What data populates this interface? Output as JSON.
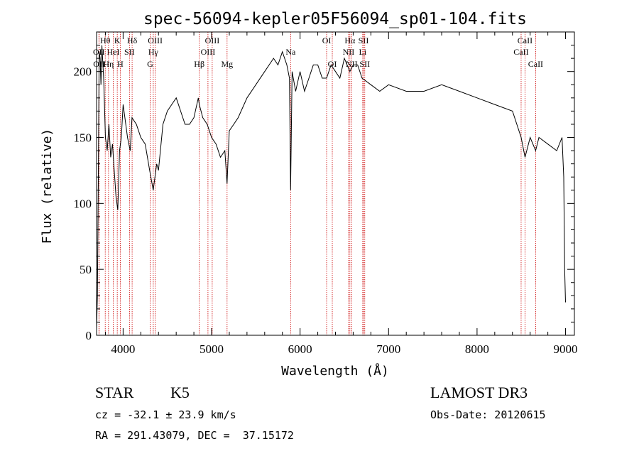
{
  "chart_data": {
    "type": "line",
    "title": "spec-56094-kepler05F56094_sp01-104.fits",
    "xlabel": "Wavelength (Å)",
    "ylabel": "Flux (relative)",
    "xlim": [
      3700,
      9100
    ],
    "ylim": [
      0,
      230
    ],
    "x_ticks": [
      4000,
      5000,
      6000,
      7000,
      8000,
      9000
    ],
    "y_ticks": [
      0,
      50,
      100,
      150,
      200
    ],
    "series": [
      {
        "name": "spectrum",
        "x": [
          3700,
          3710,
          3720,
          3730,
          3740,
          3750,
          3760,
          3780,
          3800,
          3820,
          3840,
          3860,
          3880,
          3900,
          3920,
          3940,
          3960,
          3980,
          4000,
          4020,
          4050,
          4080,
          4100,
          4150,
          4200,
          4250,
          4300,
          4340,
          4380,
          4400,
          4450,
          4500,
          4550,
          4600,
          4650,
          4700,
          4750,
          4800,
          4850,
          4861,
          4900,
          4950,
          5000,
          5050,
          5100,
          5150,
          5175,
          5200,
          5250,
          5300,
          5400,
          5500,
          5600,
          5700,
          5750,
          5800,
          5850,
          5880,
          5893,
          5910,
          5950,
          6000,
          6050,
          6100,
          6150,
          6200,
          6250,
          6300,
          6350,
          6400,
          6450,
          6500,
          6563,
          6600,
          6650,
          6700,
          6800,
          6900,
          7000,
          7200,
          7400,
          7600,
          7800,
          8000,
          8200,
          8400,
          8498,
          8542,
          8600,
          8662,
          8700,
          8800,
          8900,
          8960,
          8980,
          8990,
          9000
        ],
        "y": [
          5,
          30,
          120,
          215,
          210,
          190,
          220,
          195,
          150,
          140,
          160,
          135,
          145,
          125,
          105,
          95,
          140,
          150,
          175,
          165,
          150,
          140,
          165,
          160,
          150,
          145,
          125,
          110,
          130,
          125,
          160,
          170,
          175,
          180,
          170,
          160,
          160,
          165,
          180,
          175,
          165,
          160,
          150,
          145,
          135,
          140,
          115,
          155,
          160,
          165,
          180,
          190,
          200,
          210,
          205,
          215,
          205,
          195,
          110,
          200,
          185,
          200,
          185,
          195,
          205,
          205,
          195,
          195,
          205,
          200,
          195,
          210,
          200,
          205,
          205,
          195,
          190,
          185,
          190,
          185,
          185,
          190,
          185,
          180,
          175,
          170,
          150,
          135,
          150,
          140,
          150,
          145,
          140,
          150,
          120,
          50,
          25
        ]
      }
    ],
    "lines": [
      {
        "label": "Hθ",
        "wl": 3798,
        "row": 1
      },
      {
        "label": "OII",
        "wl": 3727,
        "row": 2
      },
      {
        "label": "OII",
        "wl": 3729,
        "row": 3
      },
      {
        "label": "K",
        "wl": 3934,
        "row": 1
      },
      {
        "label": "HeI",
        "wl": 3889,
        "row": 2
      },
      {
        "label": "Hη",
        "wl": 3835,
        "row": 3
      },
      {
        "label": "H",
        "wl": 3968,
        "row": 3
      },
      {
        "label": "SII",
        "wl": 4072,
        "row": 2
      },
      {
        "label": "Hδ",
        "wl": 4102,
        "row": 1
      },
      {
        "label": "OIII",
        "wl": 4363,
        "row": 1
      },
      {
        "label": "Hγ",
        "wl": 4341,
        "row": 2
      },
      {
        "label": "G",
        "wl": 4305,
        "row": 3
      },
      {
        "label": "Hβ",
        "wl": 4861,
        "row": 3
      },
      {
        "label": "OIII",
        "wl": 5007,
        "row": 1
      },
      {
        "label": "OIII",
        "wl": 4959,
        "row": 2
      },
      {
        "label": "Mg",
        "wl": 5175,
        "row": 3
      },
      {
        "label": "Na",
        "wl": 5893,
        "row": 2
      },
      {
        "label": "OI",
        "wl": 6300,
        "row": 1
      },
      {
        "label": "OI",
        "wl": 6364,
        "row": 3
      },
      {
        "label": "Hα",
        "wl": 6563,
        "row": 1
      },
      {
        "label": "NII",
        "wl": 6548,
        "row": 2
      },
      {
        "label": "NII",
        "wl": 6583,
        "row": 3
      },
      {
        "label": "SII",
        "wl": 6717,
        "row": 1
      },
      {
        "label": "Li",
        "wl": 6708,
        "row": 2
      },
      {
        "label": "SII",
        "wl": 6731,
        "row": 3
      },
      {
        "label": "CaII",
        "wl": 8542,
        "row": 1
      },
      {
        "label": "CaII",
        "wl": 8498,
        "row": 2
      },
      {
        "label": "CaII",
        "wl": 8662,
        "row": 3
      }
    ]
  },
  "info": {
    "class": "STAR",
    "subclass": "K5",
    "cz": "cz = -32.1 ± 23.9 km/s",
    "coords": "RA = 291.43079, DEC =  37.15172",
    "survey": "LAMOST DR3",
    "obs_date": "Obs-Date: 20120615"
  },
  "colors": {
    "axis": "#000000",
    "line_marker": "#cc0000",
    "spectrum": "#000000"
  }
}
